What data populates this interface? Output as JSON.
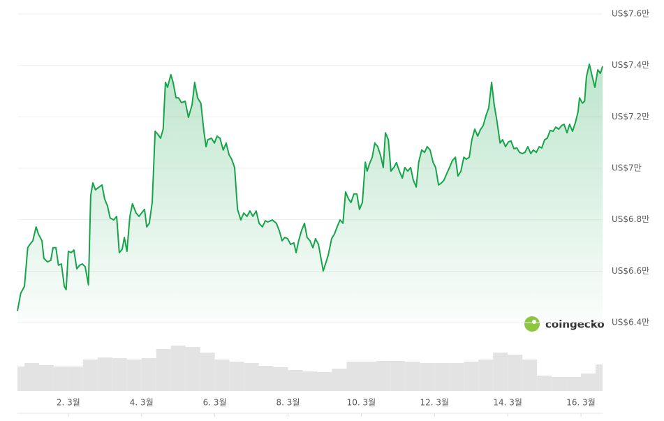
{
  "chart_data": {
    "type": "line",
    "color": "#16a34a",
    "grid": true,
    "watermark": "coingecko",
    "xlim": [
      0.61,
      16.59
    ],
    "ylim": [
      64000,
      76000
    ],
    "yticks": [
      {
        "value": 64000,
        "label": "US$6.4만"
      },
      {
        "value": 66000,
        "label": "US$6.6만"
      },
      {
        "value": 68000,
        "label": "US$6.8만"
      },
      {
        "value": 70000,
        "label": "US$7만"
      },
      {
        "value": 72000,
        "label": "US$7.2만"
      },
      {
        "value": 74000,
        "label": "US$7.4만"
      },
      {
        "value": 76000,
        "label": "US$7.6만"
      }
    ],
    "xticks": [
      {
        "value": 2,
        "label": "2. 3월"
      },
      {
        "value": 4,
        "label": "4. 3월"
      },
      {
        "value": 6,
        "label": "6. 3월"
      },
      {
        "value": 8,
        "label": "8. 3월"
      },
      {
        "value": 10,
        "label": "10. 3월"
      },
      {
        "value": 12,
        "label": "12. 3월"
      },
      {
        "value": 14,
        "label": "14. 3월"
      },
      {
        "value": 16,
        "label": "16. 3월"
      }
    ],
    "x": [
      0.61,
      0.7,
      0.8,
      0.89,
      0.95,
      1.03,
      1.12,
      1.18,
      1.28,
      1.33,
      1.43,
      1.52,
      1.58,
      1.66,
      1.73,
      1.81,
      1.89,
      1.94,
      2.0,
      2.08,
      2.15,
      2.23,
      2.31,
      2.38,
      2.46,
      2.55,
      2.61,
      2.67,
      2.74,
      2.84,
      2.92,
      2.99,
      3.07,
      3.14,
      3.24,
      3.32,
      3.39,
      3.47,
      3.53,
      3.6,
      3.68,
      3.75,
      3.85,
      3.93,
      4.0,
      4.08,
      4.14,
      4.21,
      4.29,
      4.37,
      4.44,
      4.52,
      4.59,
      4.65,
      4.71,
      4.8,
      4.86,
      4.94,
      5.01,
      5.09,
      5.19,
      5.28,
      5.38,
      5.45,
      5.53,
      5.62,
      5.7,
      5.76,
      5.81,
      5.91,
      5.99,
      6.06,
      6.14,
      6.23,
      6.31,
      6.39,
      6.46,
      6.54,
      6.62,
      6.71,
      6.79,
      6.88,
      6.96,
      7.04,
      7.13,
      7.21,
      7.3,
      7.38,
      7.45,
      7.57,
      7.68,
      7.76,
      7.84,
      7.91,
      7.99,
      8.07,
      8.16,
      8.22,
      8.29,
      8.37,
      8.45,
      8.52,
      8.6,
      8.68,
      8.75,
      8.83,
      8.9,
      8.96,
      9.04,
      9.1,
      9.19,
      9.27,
      9.34,
      9.42,
      9.5,
      9.57,
      9.65,
      9.72,
      9.8,
      9.88,
      9.95,
      10.03,
      10.11,
      10.16,
      10.22,
      10.3,
      10.37,
      10.45,
      10.53,
      10.6,
      10.66,
      10.74,
      10.81,
      10.89,
      10.96,
      11.04,
      11.12,
      11.19,
      11.27,
      11.35,
      11.42,
      11.5,
      11.57,
      11.65,
      11.73,
      11.8,
      11.88,
      11.96,
      12.03,
      12.11,
      12.19,
      12.26,
      12.34,
      12.41,
      12.49,
      12.57,
      12.64,
      12.72,
      12.8,
      12.87,
      12.95,
      13.02,
      13.1,
      13.18,
      13.25,
      13.33,
      13.41,
      13.48,
      13.56,
      13.63,
      13.71,
      13.79,
      13.86,
      13.94,
      14.02,
      14.09,
      14.17,
      14.25,
      14.32,
      14.4,
      14.47,
      14.55,
      14.63,
      14.7,
      14.78,
      14.86,
      14.93,
      15.01,
      15.08,
      15.16,
      15.24,
      15.31,
      15.39,
      15.47,
      15.54,
      15.62,
      15.69,
      15.77,
      15.85,
      15.92,
      15.96,
      16.04,
      16.1,
      16.15,
      16.23,
      16.31,
      16.38,
      16.46,
      16.53,
      16.59
    ],
    "values": [
      64460,
      65140,
      65410,
      66910,
      67040,
      67180,
      67720,
      67450,
      67180,
      66500,
      66360,
      66420,
      66910,
      66910,
      66230,
      66280,
      65410,
      65280,
      66770,
      66720,
      66820,
      66090,
      66230,
      66280,
      66170,
      65470,
      68940,
      69430,
      69160,
      69270,
      69350,
      68810,
      68530,
      68070,
      67990,
      68130,
      66720,
      66850,
      67310,
      66770,
      68130,
      68620,
      68260,
      68130,
      68260,
      68400,
      67720,
      67860,
      68670,
      71440,
      71330,
      71170,
      71520,
      73340,
      73150,
      73640,
      73340,
      72740,
      72740,
      72550,
      72610,
      71980,
      72470,
      73340,
      72740,
      72530,
      71470,
      70840,
      71110,
      71170,
      70980,
      71250,
      71170,
      70710,
      70980,
      70520,
      70350,
      70030,
      68400,
      67990,
      68260,
      68130,
      68340,
      68130,
      68340,
      67860,
      67720,
      67960,
      67910,
      67990,
      67860,
      67580,
      67180,
      67310,
      67260,
      67040,
      67100,
      66720,
      67180,
      67580,
      67860,
      67310,
      67180,
      66910,
      67260,
      67040,
      66500,
      66010,
      66360,
      66630,
      67260,
      67450,
      67720,
      67990,
      67860,
      69080,
      68810,
      68670,
      69000,
      69000,
      68400,
      68670,
      70240,
      69890,
      70160,
      70430,
      70980,
      70840,
      70490,
      70030,
      71380,
      71110,
      69890,
      70030,
      70220,
      69890,
      69620,
      70030,
      69890,
      70030,
      69540,
      69270,
      70240,
      70710,
      70620,
      70840,
      70710,
      70240,
      70030,
      69350,
      69430,
      69540,
      69810,
      70030,
      70300,
      70430,
      69700,
      69890,
      70430,
      70350,
      70430,
      71110,
      71520,
      71250,
      71490,
      71660,
      72060,
      72340,
      73340,
      72470,
      71790,
      70980,
      71110,
      70840,
      71030,
      71060,
      70760,
      70790,
      70620,
      70570,
      70620,
      70840,
      70570,
      70710,
      70620,
      70840,
      70790,
      71110,
      71170,
      71470,
      71440,
      71600,
      71520,
      71660,
      71710,
      71380,
      71710,
      71440,
      71790,
      72200,
      72740,
      72530,
      72610,
      73560,
      74050,
      73560,
      73150,
      73830,
      73690,
      73960
    ],
    "volume": {
      "ylim": [
        0,
        80
      ],
      "color": "#e3e3e3",
      "x": [
        0.6,
        1.0,
        1.4,
        1.8,
        2.2,
        2.6,
        3.0,
        3.4,
        3.8,
        4.2,
        4.6,
        5.0,
        5.4,
        5.8,
        6.2,
        6.6,
        7.0,
        7.4,
        7.8,
        8.2,
        8.6,
        9.0,
        9.4,
        9.8,
        10.2,
        10.6,
        11.0,
        11.4,
        11.8,
        12.2,
        12.6,
        13.0,
        13.4,
        13.8,
        14.2,
        14.6,
        15.0,
        15.4,
        15.8,
        16.2,
        16.6
      ],
      "values": [
        35,
        40,
        37,
        35,
        35,
        45,
        48,
        47,
        45,
        47,
        60,
        65,
        63,
        55,
        45,
        42,
        40,
        36,
        34,
        30,
        28,
        27,
        32,
        42,
        42,
        43,
        43,
        42,
        40,
        40,
        40,
        42,
        45,
        55,
        52,
        45,
        22,
        20,
        20,
        25,
        38
      ]
    }
  }
}
